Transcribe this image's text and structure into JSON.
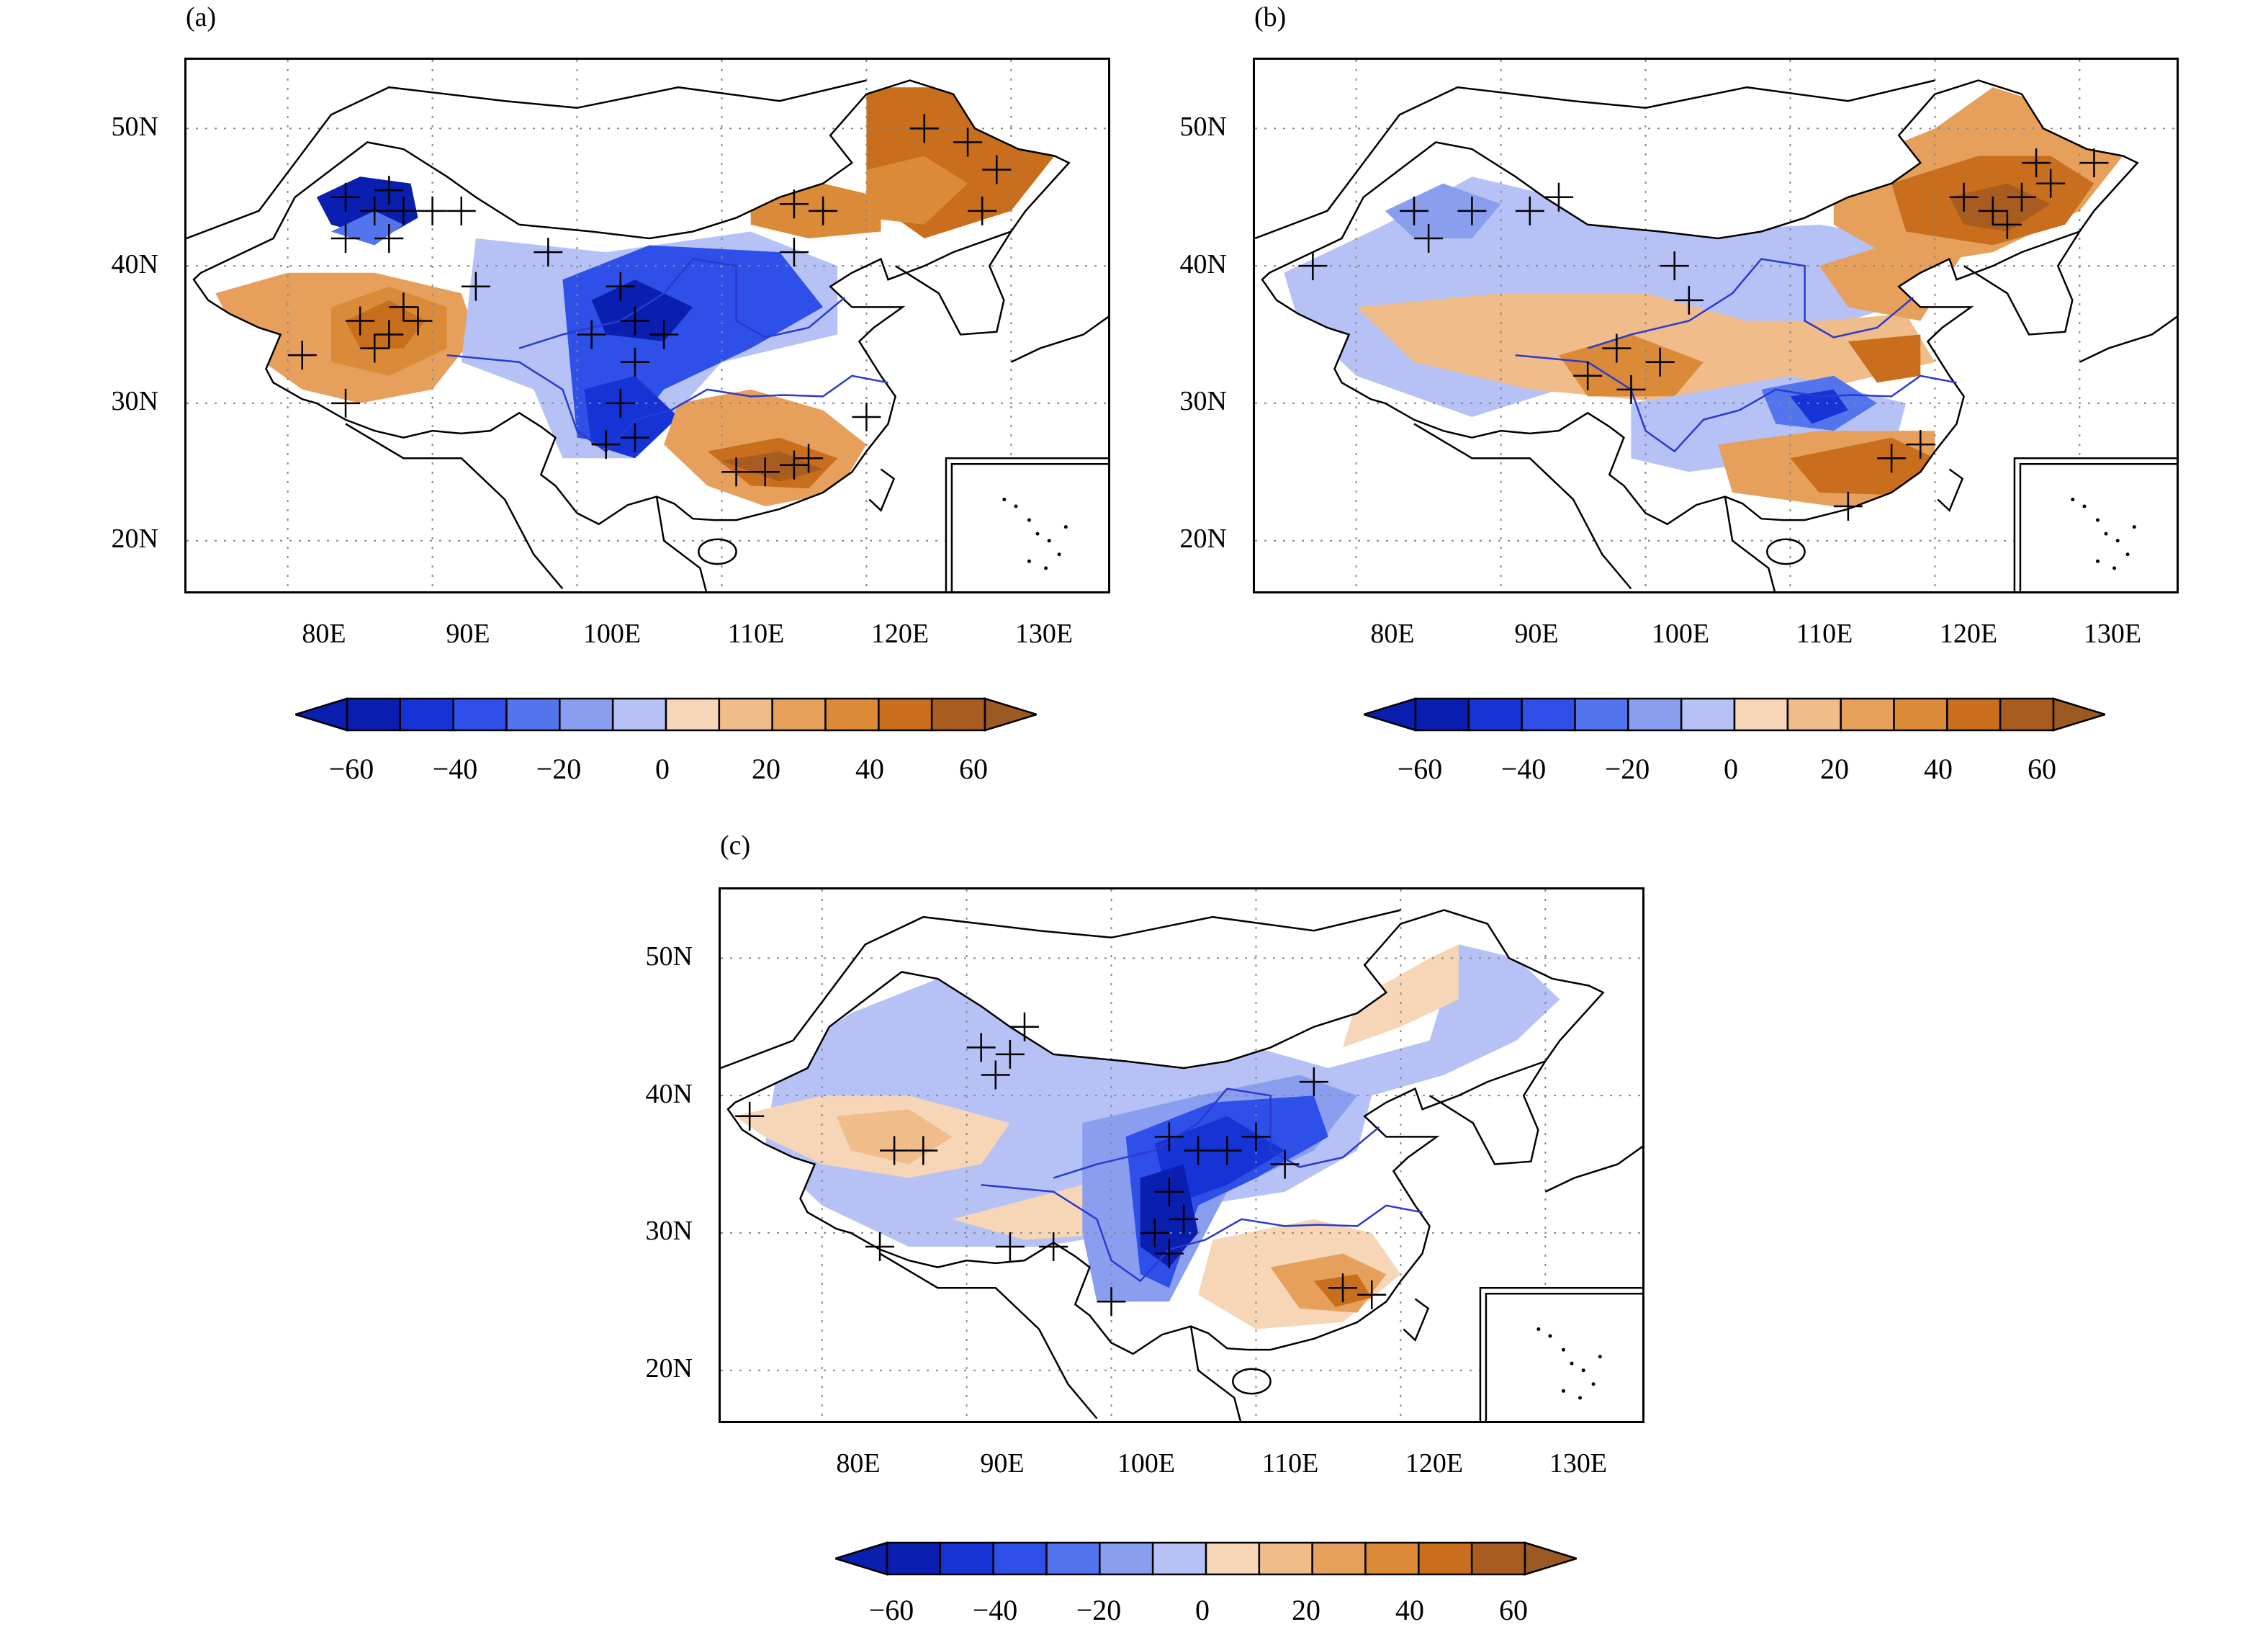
{
  "panels": [
    {
      "label": "(a)"
    },
    {
      "label": "(b)"
    },
    {
      "label": "(c)"
    }
  ],
  "axes": {
    "lat_ticks": [
      "50N",
      "40N",
      "30N",
      "20N"
    ],
    "lon_ticks": [
      "80E",
      "90E",
      "100E",
      "110E",
      "120E",
      "130E"
    ],
    "lat_range": [
      16,
      55
    ],
    "lon_range": [
      73,
      137
    ]
  },
  "colorbar": {
    "levels": [
      -60,
      -50,
      -40,
      -30,
      -20,
      -10,
      0,
      10,
      20,
      30,
      40,
      50,
      60
    ],
    "tick_labels": [
      "−60",
      "−40",
      "−20",
      "0",
      "20",
      "40",
      "60"
    ],
    "colors": [
      "#0a1fb0",
      "#1634d6",
      "#2e50e8",
      "#5274ec",
      "#8a9ef0",
      "#b6c2f6",
      "#f6d6b6",
      "#efbc8a",
      "#e6a05c",
      "#db8a38",
      "#c86e1c",
      "#a85c20"
    ],
    "extend_low_color": "#0a1fb0",
    "extend_high_color": "#9a5a22"
  },
  "colors": {
    "coast": "#000000",
    "river": "#2a3ad0",
    "grid": "#888888"
  }
}
